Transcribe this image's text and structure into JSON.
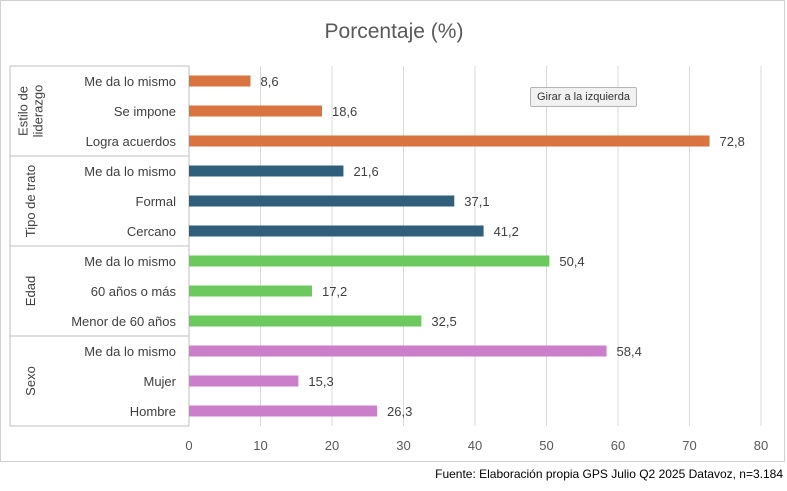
{
  "chart_data": {
    "type": "bar",
    "orientation": "horizontal",
    "title": "Porcentaje (%)",
    "xlim": [
      0,
      80
    ],
    "xticks": [
      0,
      10,
      20,
      30,
      40,
      50,
      60,
      70,
      80
    ],
    "grid": true,
    "decimal_separator": ",",
    "groups": [
      {
        "name": "Estilo de liderazgo",
        "color": "#D9733F",
        "categories": [
          "Me da lo mismo",
          "Se impone",
          "Logra acuerdos"
        ],
        "values": [
          8.6,
          18.6,
          72.8
        ]
      },
      {
        "name": "Tipo de trato",
        "color": "#2F5F7A",
        "categories": [
          "Me da lo mismo",
          "Formal",
          "Cercano"
        ],
        "values": [
          21.6,
          37.1,
          41.2
        ]
      },
      {
        "name": "Edad",
        "color": "#6CC95E",
        "categories": [
          "Me da lo mismo",
          "60 años o más",
          "Menor de 60 años"
        ],
        "values": [
          50.4,
          17.2,
          32.5
        ]
      },
      {
        "name": "Sexo",
        "color": "#CB7FCB",
        "categories": [
          "Me da lo mismo",
          "Mujer",
          "Hombre"
        ],
        "values": [
          58.4,
          15.3,
          26.3
        ]
      }
    ]
  },
  "tooltip": "Girar a la izquierda",
  "source": "Fuente: Elaboración propia GPS Julio Q2 2025 Datavoz, n=3.184"
}
